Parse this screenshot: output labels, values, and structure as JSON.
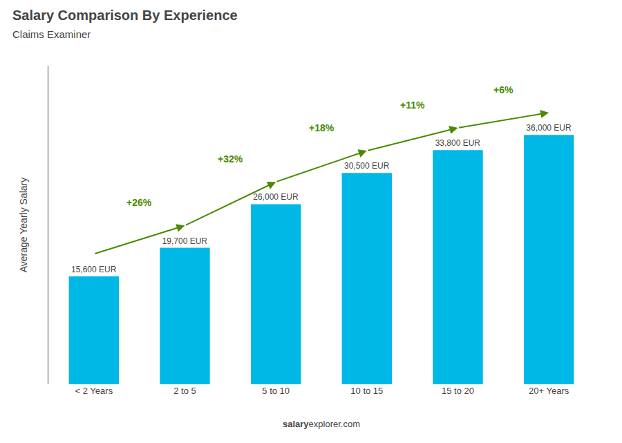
{
  "chart_data": {
    "type": "bar",
    "title": "Salary Comparison By Experience",
    "subtitle": "Claims Examiner",
    "ylabel": "Average Yearly Salary",
    "categories": [
      "< 2 Years",
      "2 to 5",
      "5 to 10",
      "10 to 15",
      "15 to 20",
      "20+ Years"
    ],
    "values": [
      15600,
      19700,
      26000,
      30500,
      33800,
      36000
    ],
    "value_labels": [
      "15,600 EUR",
      "19,700 EUR",
      "26,000 EUR",
      "30,500 EUR",
      "33,800 EUR",
      "36,000 EUR"
    ],
    "data_labels": true,
    "color": "#00b8e6",
    "ylim": [
      0,
      46000
    ],
    "tick_labels": "x",
    "grid": false,
    "annotations": [
      {
        "text": "+26%",
        "from": "< 2 Years",
        "to": "2 to 5"
      },
      {
        "text": "+32%",
        "from": "2 to 5",
        "to": "5 to 10"
      },
      {
        "text": "+18%",
        "from": "5 to 10",
        "to": "10 to 15"
      },
      {
        "text": "+11%",
        "from": "10 to 15",
        "to": "15 to 20"
      },
      {
        "text": "+6%",
        "from": "15 to 20",
        "to": "20+ Years"
      }
    ],
    "footer": [
      "salary",
      "explorer.com"
    ]
  }
}
